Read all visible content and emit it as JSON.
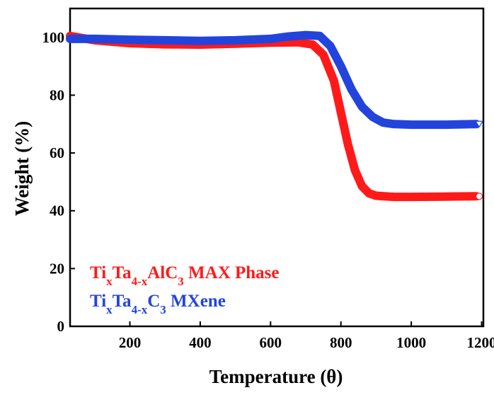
{
  "chart_data": {
    "type": "line",
    "xlabel": "Temperature (θ)",
    "ylabel": "Weight (%)",
    "xlim": [
      30,
      1205
    ],
    "ylim": [
      0,
      110
    ],
    "x_ticks": [
      200,
      400,
      600,
      800,
      1000,
      1200
    ],
    "y_ticks": [
      0,
      20,
      40,
      60,
      80,
      100
    ],
    "x_tick_labels": [
      "200",
      "400",
      "600",
      "800",
      "1000",
      "1200"
    ],
    "y_tick_labels": [
      "0",
      "20",
      "40",
      "60",
      "80",
      "100"
    ],
    "grid": false,
    "legend_position": "bottom-left",
    "series": [
      {
        "name": "TixTa4-xAlC3 MAX Phase",
        "legend": {
          "parts": [
            {
              "t": "Ti",
              "s": ""
            },
            {
              "t": "x",
              "s": "sub"
            },
            {
              "t": "Ta",
              "s": ""
            },
            {
              "t": "4-x",
              "s": "sub"
            },
            {
              "t": "AlC",
              "s": ""
            },
            {
              "t": "3",
              "s": "sub"
            },
            {
              "t": " MAX Phase",
              "s": ""
            }
          ]
        },
        "color": "#ff1a1a",
        "end_marker": "circle",
        "points": [
          [
            30,
            100.5
          ],
          [
            100,
            99
          ],
          [
            200,
            98
          ],
          [
            300,
            97.6
          ],
          [
            400,
            97.5
          ],
          [
            500,
            97.8
          ],
          [
            600,
            98.2
          ],
          [
            680,
            98.3
          ],
          [
            720,
            97.5
          ],
          [
            750,
            94
          ],
          [
            780,
            85
          ],
          [
            800,
            74
          ],
          [
            820,
            63
          ],
          [
            840,
            54
          ],
          [
            860,
            48.5
          ],
          [
            880,
            46
          ],
          [
            900,
            45.2
          ],
          [
            950,
            44.8
          ],
          [
            1000,
            44.8
          ],
          [
            1100,
            44.9
          ],
          [
            1185,
            45
          ]
        ]
      },
      {
        "name": "TixTa4-xC3 MXene",
        "legend": {
          "parts": [
            {
              "t": "Ti",
              "s": ""
            },
            {
              "t": "x",
              "s": "sub"
            },
            {
              "t": "Ta",
              "s": ""
            },
            {
              "t": "4-x",
              "s": "sub"
            },
            {
              "t": "C",
              "s": ""
            },
            {
              "t": "3",
              "s": "sub"
            },
            {
              "t": " MXene",
              "s": ""
            }
          ]
        },
        "color": "#2244dd",
        "end_marker": "triangle-down",
        "points": [
          [
            30,
            99.5
          ],
          [
            100,
            99.5
          ],
          [
            200,
            99.2
          ],
          [
            300,
            99
          ],
          [
            400,
            98.8
          ],
          [
            500,
            99
          ],
          [
            600,
            99.5
          ],
          [
            650,
            100.3
          ],
          [
            700,
            100.8
          ],
          [
            740,
            100.5
          ],
          [
            770,
            97
          ],
          [
            800,
            90
          ],
          [
            830,
            82
          ],
          [
            860,
            76
          ],
          [
            890,
            72.5
          ],
          [
            920,
            70.5
          ],
          [
            950,
            70
          ],
          [
            1000,
            69.8
          ],
          [
            1100,
            69.8
          ],
          [
            1185,
            70
          ]
        ]
      }
    ]
  }
}
